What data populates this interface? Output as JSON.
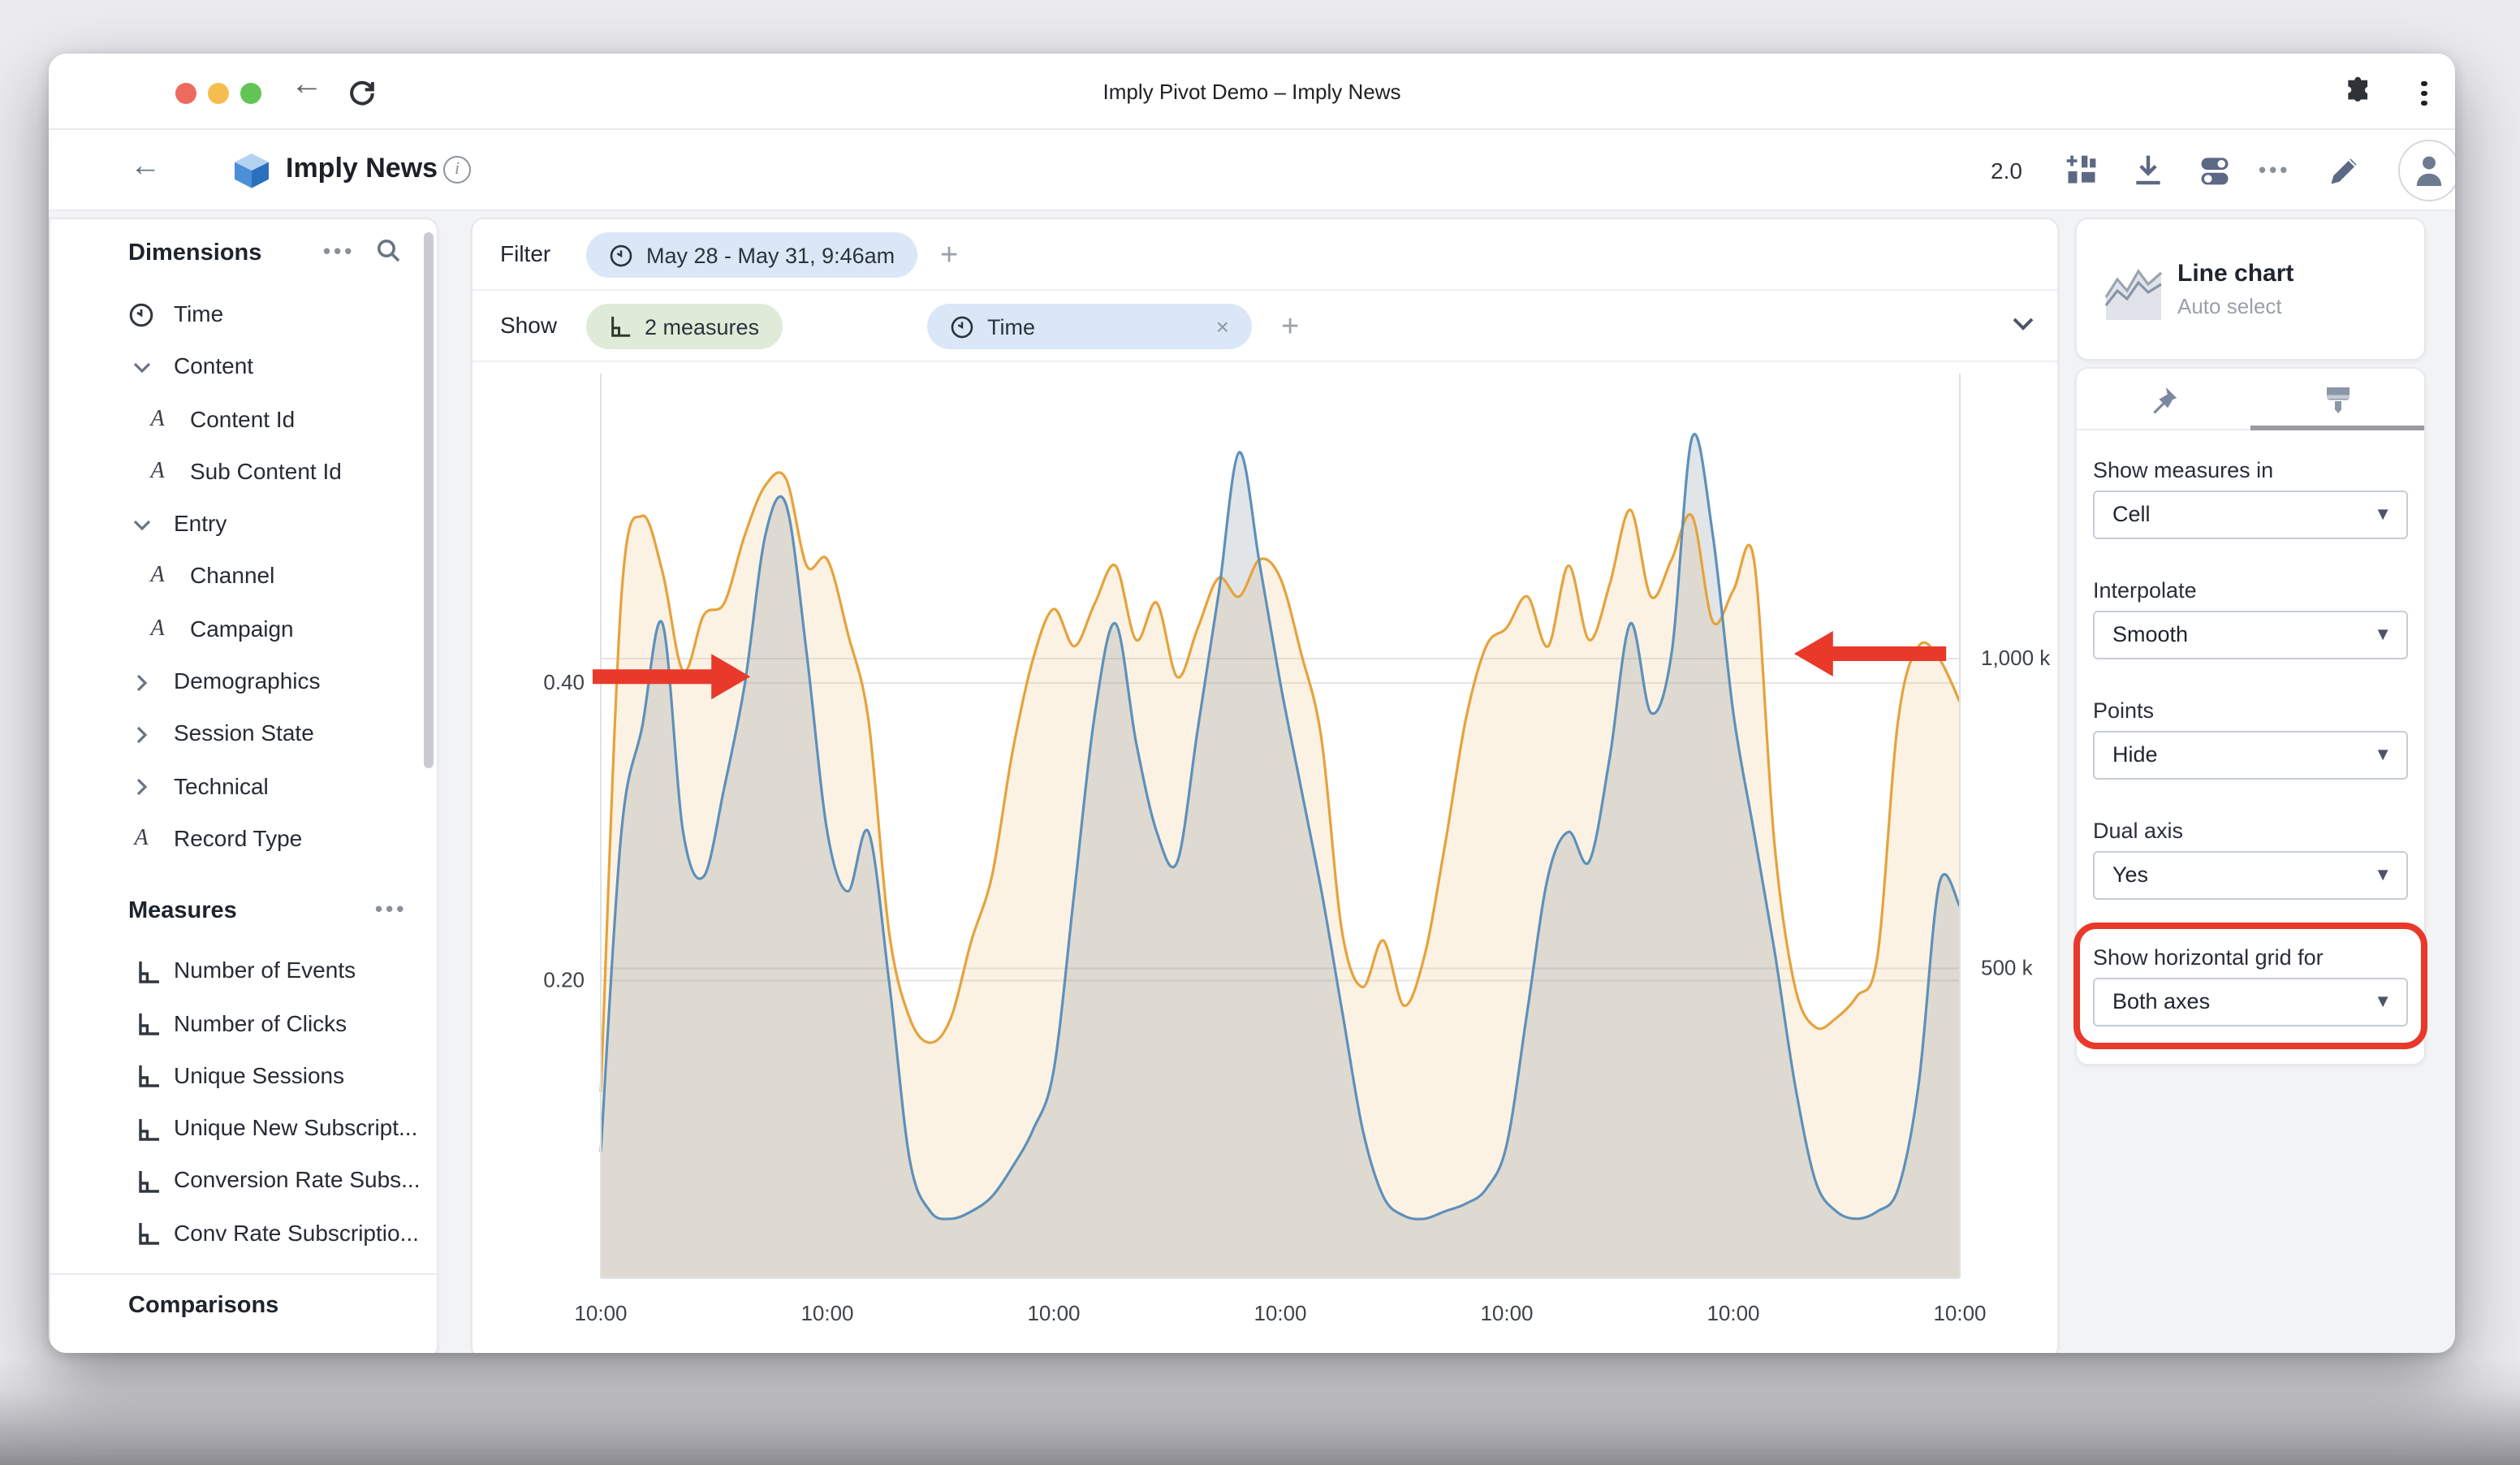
{
  "browser": {
    "title": "Imply Pivot Demo – Imply News"
  },
  "app_header": {
    "title": "Imply News",
    "version": "2.0",
    "icons": [
      "grid-add",
      "download",
      "toggles",
      "ellipsis",
      "pencil",
      "avatar"
    ]
  },
  "sidebar": {
    "dimensions": {
      "title": "Dimensions",
      "header_icons": [
        "ellipsis",
        "search"
      ],
      "items": [
        {
          "icon": "clock-icon",
          "label": "Time"
        },
        {
          "icon": "chevron-down-icon",
          "label": "Content"
        },
        {
          "icon": "letter-a-icon",
          "label": "Content Id",
          "indent": 1
        },
        {
          "icon": "letter-a-icon",
          "label": "Sub Content Id",
          "indent": 1
        },
        {
          "icon": "chevron-down-icon",
          "label": "Entry"
        },
        {
          "icon": "letter-a-icon",
          "label": "Channel",
          "indent": 1
        },
        {
          "icon": "letter-a-icon",
          "label": "Campaign",
          "indent": 1
        },
        {
          "icon": "chevron-right-icon",
          "label": "Demographics"
        },
        {
          "icon": "chevron-right-icon",
          "label": "Session State"
        },
        {
          "icon": "chevron-right-icon",
          "label": "Technical"
        },
        {
          "icon": "letter-a-icon",
          "label": "Record Type"
        }
      ]
    },
    "measures": {
      "title": "Measures",
      "header_icons": [
        "ellipsis"
      ],
      "items": [
        {
          "icon": "measure-icon",
          "label": "Number of Events"
        },
        {
          "icon": "measure-icon",
          "label": "Number of Clicks"
        },
        {
          "icon": "measure-icon",
          "label": "Unique Sessions"
        },
        {
          "icon": "measure-icon",
          "label": "Unique New Subscript..."
        },
        {
          "icon": "measure-icon",
          "label": "Conversion Rate Subs..."
        },
        {
          "icon": "measure-icon",
          "label": "Conv Rate Subscriptio..."
        }
      ]
    },
    "comparisons": {
      "title": "Comparisons"
    }
  },
  "filter_bar": {
    "label": "Filter",
    "pill": {
      "icon": "clock-icon",
      "text": "May 28 - May 31, 9:46am"
    },
    "add": "+"
  },
  "show_bar": {
    "label": "Show",
    "measures_pill": {
      "icon": "measure-icon",
      "text": "2 measures"
    },
    "time_pill": {
      "icon": "clock-icon",
      "text": "Time",
      "close": "×"
    },
    "add": "+"
  },
  "panel": {
    "chart_type": {
      "icon": "line-chart-thumb-icon",
      "title": "Line chart",
      "subtitle": "Auto select"
    },
    "tabs": [
      {
        "icon": "pin-icon",
        "active": false
      },
      {
        "icon": "brush-icon",
        "active": true
      }
    ],
    "controls": [
      {
        "label": "Show measures in",
        "value": "Cell"
      },
      {
        "label": "Interpolate",
        "value": "Smooth"
      },
      {
        "label": "Points",
        "value": "Hide"
      },
      {
        "label": "Dual axis",
        "value": "Yes"
      },
      {
        "label": "Show horizontal grid for",
        "value": "Both axes",
        "highlighted": true,
        "highlight_color": "#e8392b"
      }
    ]
  },
  "chart_data": {
    "type": "area",
    "interpolation": "smooth",
    "points": "hidden",
    "dual_axis": true,
    "horizontal_grid": "both-axes",
    "x_ticks": [
      "10:00",
      "10:00",
      "10:00",
      "10:00",
      "10:00",
      "10:00",
      "10:00"
    ],
    "left_axis": {
      "range": [
        0,
        0.608
      ],
      "ticks": [
        {
          "value": 0.4,
          "label": "0.40"
        },
        {
          "value": 0.2,
          "label": "0.20"
        }
      ]
    },
    "right_axis": {
      "range": [
        0,
        1460
      ],
      "unit": "k",
      "ticks": [
        {
          "value": 1000,
          "label": "1,000 k"
        },
        {
          "value": 500,
          "label": "500 k"
        }
      ]
    },
    "series": [
      {
        "name": "orange-measure",
        "axis": "right",
        "color": "#e5a33c",
        "fill": "rgba(240,185,100,0.18)",
        "values": [
          300,
          1100,
          1230,
          1140,
          980,
          1070,
          1090,
          1200,
          1280,
          1290,
          1150,
          1160,
          1040,
          900,
          560,
          420,
          380,
          420,
          545,
          650,
          850,
          1000,
          1080,
          1020,
          1090,
          1150,
          1030,
          1090,
          970,
          1050,
          1130,
          1100,
          1160,
          1130,
          1010,
          870,
          560,
          470,
          545,
          440,
          520,
          700,
          900,
          1020,
          1050,
          1100,
          1020,
          1150,
          1030,
          1120,
          1240,
          1100,
          1160,
          1230,
          1060,
          1110,
          1160,
          700,
          470,
          405,
          420,
          455,
          520,
          900,
          1020,
          1000,
          930
        ]
      },
      {
        "name": "blue-measure",
        "axis": "left",
        "color": "#5e90ba",
        "fill": "rgba(90,110,125,0.18)",
        "values": [
          0.085,
          0.3,
          0.37,
          0.44,
          0.3,
          0.27,
          0.33,
          0.4,
          0.5,
          0.52,
          0.42,
          0.3,
          0.26,
          0.3,
          0.2,
          0.08,
          0.045,
          0.04,
          0.045,
          0.055,
          0.075,
          0.1,
          0.14,
          0.26,
          0.38,
          0.44,
          0.36,
          0.3,
          0.28,
          0.37,
          0.46,
          0.555,
          0.48,
          0.4,
          0.33,
          0.26,
          0.18,
          0.1,
          0.055,
          0.042,
          0.04,
          0.045,
          0.05,
          0.06,
          0.09,
          0.18,
          0.27,
          0.3,
          0.28,
          0.35,
          0.44,
          0.38,
          0.42,
          0.565,
          0.5,
          0.38,
          0.3,
          0.22,
          0.13,
          0.065,
          0.045,
          0.04,
          0.045,
          0.06,
          0.13,
          0.265,
          0.25
        ]
      }
    ],
    "annotations": [
      {
        "type": "arrow",
        "color": "#e8392b",
        "direction": "right",
        "axis": "left",
        "value": 0.4,
        "from_frac": -0.006,
        "tip_frac": 0.11
      },
      {
        "type": "arrow",
        "color": "#e8392b",
        "direction": "left",
        "axis": "right",
        "value": 1000,
        "from_frac": 0.99,
        "tip_frac": 0.878
      }
    ]
  }
}
